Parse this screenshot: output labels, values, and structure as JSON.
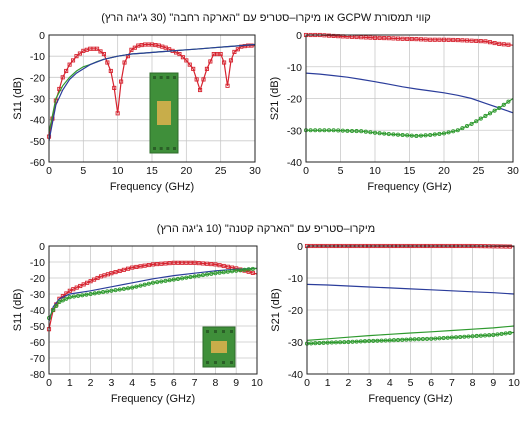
{
  "captions": {
    "top": "קווי תמסורת GCPW או מיקרו–סטריפ עם \"הארקה רחבה\" (30 ג'יגה הרץ)",
    "bottom": "מיקרו–סטריפ עם \"הארקה קטנה\" (10 ג'יגה הרץ)"
  },
  "colors": {
    "red": "#d6232f",
    "blue": "#2b3d9b",
    "green": "#2f9a2f",
    "grid": "#c9c9c9",
    "board": "#3f8f3a",
    "pad": "#c8ad4a"
  },
  "chart_data": [
    {
      "id": "top-left",
      "type": "line",
      "xlabel": "Frequency (GHz)",
      "ylabel": "S11 (dB)",
      "xlim": [
        0,
        30
      ],
      "ylim": [
        -60,
        0
      ],
      "xticks": [
        0,
        5,
        10,
        15,
        20,
        25,
        30
      ],
      "yticks": [
        0,
        -10,
        -20,
        -30,
        -40,
        -50,
        -60
      ],
      "inset": true,
      "series": [
        {
          "color": "red",
          "marker": "square",
          "x": [
            0,
            1,
            2,
            3,
            4,
            5,
            6,
            7,
            8,
            9,
            9.5,
            10,
            10.5,
            11,
            12,
            13,
            14,
            15,
            16,
            17,
            18,
            19,
            20,
            21,
            22,
            23,
            24,
            25,
            25.5,
            26,
            26.5,
            27,
            28,
            29,
            30
          ],
          "y": [
            -48,
            -31,
            -20,
            -14,
            -10,
            -7.5,
            -6.5,
            -6.5,
            -9,
            -17,
            -25,
            -37,
            -22,
            -13,
            -7,
            -5,
            -4.5,
            -4.5,
            -5,
            -6,
            -7.5,
            -9,
            -12,
            -16,
            -26,
            -16,
            -9,
            -9,
            -13,
            -24,
            -12,
            -8,
            -5.5,
            -5,
            -5
          ]
        },
        {
          "color": "green",
          "marker": "line",
          "x": [
            0,
            1,
            2,
            3,
            4,
            5,
            6,
            7,
            8,
            10,
            12,
            14,
            16,
            18,
            20,
            22,
            24,
            26,
            28,
            30
          ],
          "y": [
            -46,
            -30,
            -24,
            -20,
            -17,
            -15,
            -14,
            -12.5,
            -11.5,
            -10,
            -9,
            -8.5,
            -8,
            -7.5,
            -7,
            -6.5,
            -6,
            -5.5,
            -5,
            -4.5
          ]
        },
        {
          "color": "blue",
          "marker": "line",
          "x": [
            0,
            1,
            2,
            3,
            4,
            5,
            6,
            8,
            10,
            12,
            14,
            16,
            18,
            20,
            22,
            24,
            26,
            28,
            30
          ],
          "y": [
            -50,
            -33,
            -26,
            -21,
            -18,
            -16,
            -14,
            -11.5,
            -10,
            -9,
            -8.5,
            -8,
            -7.5,
            -7,
            -6.5,
            -6,
            -5.5,
            -5,
            -4.5
          ]
        }
      ]
    },
    {
      "id": "top-right",
      "type": "line",
      "xlabel": "Frequency (GHz)",
      "ylabel": "S21 (dB)",
      "xlim": [
        0,
        30
      ],
      "ylim": [
        -40,
        0
      ],
      "xticks": [
        0,
        5,
        10,
        15,
        20,
        25,
        30
      ],
      "yticks": [
        0,
        -10,
        -20,
        -30,
        -40
      ],
      "inset": false,
      "series": [
        {
          "color": "red",
          "marker": "square",
          "x": [
            0,
            2,
            4,
            6,
            8,
            10,
            12,
            14,
            16,
            18,
            20,
            22,
            24,
            26,
            28,
            30
          ],
          "y": [
            0,
            0,
            -0.3,
            -0.5,
            -0.7,
            -0.9,
            -1,
            -1.2,
            -1.3,
            -1.5,
            -1.5,
            -1.6,
            -1.8,
            -2,
            -2.8,
            -3.2
          ]
        },
        {
          "color": "blue",
          "marker": "line",
          "x": [
            0,
            2,
            4,
            6,
            8,
            10,
            12,
            14,
            16,
            18,
            20,
            22,
            24,
            26,
            28,
            30
          ],
          "y": [
            -12,
            -12.3,
            -12.8,
            -13.3,
            -14,
            -14.7,
            -15.5,
            -16.3,
            -17,
            -17.6,
            -18.2,
            -19,
            -20,
            -21.5,
            -23,
            -24.5
          ]
        },
        {
          "color": "green",
          "marker": "circle",
          "x": [
            0,
            2,
            4,
            6,
            8,
            10,
            12,
            14,
            16,
            18,
            20,
            22,
            24,
            26,
            28,
            30
          ],
          "y": [
            -30,
            -30,
            -30,
            -30.2,
            -30.3,
            -30.8,
            -31.2,
            -31.5,
            -31.8,
            -31.5,
            -31,
            -30,
            -28,
            -25.5,
            -23,
            -20
          ]
        }
      ]
    },
    {
      "id": "bottom-left",
      "type": "line",
      "xlabel": "Frequency (GHz)",
      "ylabel": "S11 (dB)",
      "xlim": [
        0,
        10
      ],
      "ylim": [
        -80,
        0
      ],
      "xticks": [
        0,
        1,
        2,
        3,
        4,
        5,
        6,
        7,
        8,
        9,
        10
      ],
      "yticks": [
        0,
        -10,
        -20,
        -30,
        -40,
        -50,
        -60,
        -70,
        -80
      ],
      "inset": true,
      "series": [
        {
          "color": "red",
          "marker": "square",
          "x": [
            0,
            0.2,
            0.5,
            1,
            1.5,
            2,
            2.5,
            3,
            4,
            5,
            6,
            7,
            8,
            9,
            10
          ],
          "y": [
            -52,
            -40,
            -33,
            -28,
            -25,
            -22,
            -19,
            -17,
            -13.5,
            -11.5,
            -10.5,
            -10.5,
            -11.5,
            -14,
            -17.5
          ]
        },
        {
          "color": "blue",
          "marker": "line",
          "x": [
            0,
            0.2,
            0.5,
            1,
            2,
            3,
            4,
            5,
            6,
            7,
            8,
            9,
            10
          ],
          "y": [
            -47,
            -38,
            -33,
            -30,
            -28,
            -25.5,
            -23,
            -20.5,
            -18.5,
            -17,
            -15.5,
            -14.5,
            -14
          ]
        },
        {
          "color": "green",
          "marker": "circle",
          "x": [
            0,
            0.2,
            0.5,
            1,
            2,
            3,
            4,
            5,
            6,
            7,
            8,
            9,
            10
          ],
          "y": [
            -45,
            -40,
            -35,
            -32,
            -30,
            -28,
            -26,
            -23,
            -21,
            -19,
            -17,
            -15.5,
            -14
          ]
        }
      ]
    },
    {
      "id": "bottom-right",
      "type": "line",
      "xlabel": "Frequency (GHz)",
      "ylabel": "S21 (dB)",
      "xlim": [
        0,
        10
      ],
      "ylim": [
        -40,
        0
      ],
      "xticks": [
        0,
        1,
        2,
        3,
        4,
        5,
        6,
        7,
        8,
        9,
        10
      ],
      "yticks": [
        0,
        -10,
        -20,
        -30,
        -40
      ],
      "inset": false,
      "series": [
        {
          "color": "red",
          "marker": "square",
          "x": [
            0,
            1,
            2,
            3,
            4,
            5,
            6,
            7,
            8,
            9,
            10
          ],
          "y": [
            0,
            0,
            0,
            0,
            0,
            0,
            0,
            0,
            0,
            -0.1,
            -0.2
          ]
        },
        {
          "color": "blue",
          "marker": "line",
          "x": [
            0,
            1,
            2,
            3,
            4,
            5,
            6,
            7,
            8,
            9,
            10
          ],
          "y": [
            -12,
            -12.2,
            -12.5,
            -12.8,
            -13.1,
            -13.4,
            -13.7,
            -14,
            -14.3,
            -14.6,
            -15
          ]
        },
        {
          "color": "green",
          "marker": "line",
          "x": [
            0,
            1,
            2,
            3,
            4,
            5,
            6,
            7,
            8,
            9,
            10
          ],
          "y": [
            -29.5,
            -29,
            -28.5,
            -28,
            -27.6,
            -27.2,
            -26.8,
            -26.4,
            -26,
            -25.6,
            -25
          ]
        },
        {
          "color": "green",
          "marker": "circle",
          "x": [
            0,
            1,
            2,
            3,
            4,
            5,
            6,
            7,
            8,
            9,
            10
          ],
          "y": [
            -30.5,
            -30.2,
            -30,
            -29.7,
            -29.5,
            -29.2,
            -29,
            -28.6,
            -28.2,
            -27.8,
            -27
          ]
        }
      ]
    }
  ]
}
